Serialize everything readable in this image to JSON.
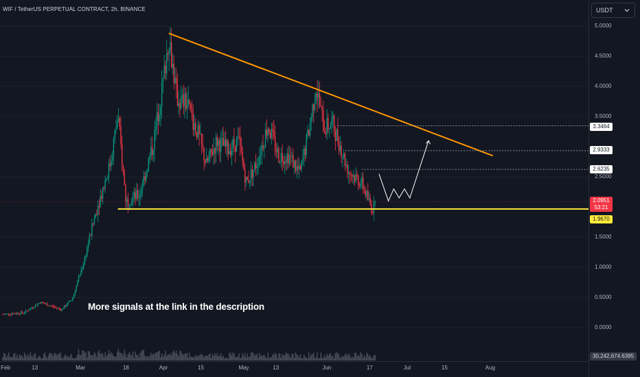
{
  "header": {
    "symbol_title": "WIF / TetherUS PERPETUAL CONTRACT, 2h, BINANCE"
  },
  "currency_selector": {
    "label": "USDT"
  },
  "yaxis": {
    "labels": [
      {
        "text": "5.0000",
        "value": 5.0
      },
      {
        "text": "4.5000",
        "value": 4.5
      },
      {
        "text": "4.0000",
        "value": 4.0
      },
      {
        "text": "3.5000",
        "value": 3.5
      },
      {
        "text": "2.5000",
        "value": 2.5
      },
      {
        "text": "1.5000",
        "value": 1.5
      },
      {
        "text": "1.0000",
        "value": 1.0
      },
      {
        "text": "0.5000",
        "value": 0.5
      },
      {
        "text": "0.0000",
        "value": 0.0
      }
    ]
  },
  "price_tags": {
    "level1": "3.3464",
    "level2": "2.9333",
    "level3": "2.6235",
    "current_price": "2.0951",
    "countdown": "53:21",
    "support": "1.9670"
  },
  "xaxis": {
    "labels": [
      {
        "text": "Feb",
        "day": 0
      },
      {
        "text": "13",
        "day": 12
      },
      {
        "text": "Mar",
        "day": 29
      },
      {
        "text": "18",
        "day": 46
      },
      {
        "text": "Apr",
        "day": 60
      },
      {
        "text": "15",
        "day": 74
      },
      {
        "text": "May",
        "day": 90
      },
      {
        "text": "13",
        "day": 102
      },
      {
        "text": "Jun",
        "day": 121
      },
      {
        "text": "17",
        "day": 137
      },
      {
        "text": "Jul",
        "day": 151
      },
      {
        "text": "15",
        "day": 165
      },
      {
        "text": "Aug",
        "day": 182
      }
    ]
  },
  "volume": {
    "last_value": "30,242,674.6395"
  },
  "annotation": {
    "text": "More signals at the link in the description"
  },
  "colors": {
    "background": "#131722",
    "up": "#089981",
    "down": "#f23645",
    "trendline": "#ff9800",
    "support": "#ffeb3b",
    "projection": "#ffffff"
  },
  "chart_data": {
    "type": "candlestick",
    "series": [
      {
        "name": "WIF/USDT",
        "interval": "2h"
      }
    ],
    "anchor_points": [
      {
        "day": 0,
        "price": 0.22
      },
      {
        "day": 8,
        "price": 0.25
      },
      {
        "day": 14,
        "price": 0.42
      },
      {
        "day": 22,
        "price": 0.3
      },
      {
        "day": 26,
        "price": 0.48
      },
      {
        "day": 30,
        "price": 1.05
      },
      {
        "day": 35,
        "price": 1.95
      },
      {
        "day": 40,
        "price": 2.7
      },
      {
        "day": 43,
        "price": 3.5
      },
      {
        "day": 46,
        "price": 2.1
      },
      {
        "day": 51,
        "price": 2.2
      },
      {
        "day": 56,
        "price": 3.0
      },
      {
        "day": 60,
        "price": 4.1
      },
      {
        "day": 62,
        "price": 4.85
      },
      {
        "day": 65,
        "price": 3.8
      },
      {
        "day": 69,
        "price": 3.7
      },
      {
        "day": 73,
        "price": 3.2
      },
      {
        "day": 76,
        "price": 2.7
      },
      {
        "day": 80,
        "price": 3.1
      },
      {
        "day": 84,
        "price": 2.95
      },
      {
        "day": 88,
        "price": 3.1
      },
      {
        "day": 91,
        "price": 2.4
      },
      {
        "day": 95,
        "price": 2.75
      },
      {
        "day": 99,
        "price": 3.35
      },
      {
        "day": 103,
        "price": 2.85
      },
      {
        "day": 107,
        "price": 2.85
      },
      {
        "day": 111,
        "price": 2.55
      },
      {
        "day": 114,
        "price": 3.2
      },
      {
        "day": 117,
        "price": 4.0
      },
      {
        "day": 120,
        "price": 3.3
      },
      {
        "day": 123,
        "price": 3.4
      },
      {
        "day": 125,
        "price": 3.15
      },
      {
        "day": 129,
        "price": 2.6
      },
      {
        "day": 134,
        "price": 2.4
      },
      {
        "day": 138,
        "price": 1.95
      },
      {
        "day": 139.5,
        "price": 2.09
      }
    ],
    "trendline": [
      {
        "day": 62,
        "price": 4.88
      },
      {
        "day": 183,
        "price": 2.85
      }
    ],
    "support_line": {
      "from_day": 43,
      "to_day": 190,
      "price": 1.967
    },
    "levels": [
      {
        "price": 3.3464,
        "from_day": 125
      },
      {
        "price": 2.9333,
        "from_day": 128
      },
      {
        "price": 2.6235,
        "from_day": 134
      }
    ],
    "projection_path": [
      {
        "day": 140.5,
        "price": 2.55
      },
      {
        "day": 144,
        "price": 2.1
      },
      {
        "day": 146,
        "price": 2.3
      },
      {
        "day": 148,
        "price": 2.15
      },
      {
        "day": 150,
        "price": 2.3
      },
      {
        "day": 152,
        "price": 2.15
      },
      {
        "day": 159,
        "price": 3.1
      }
    ],
    "ylim": [
      -0.1,
      5.2
    ]
  }
}
